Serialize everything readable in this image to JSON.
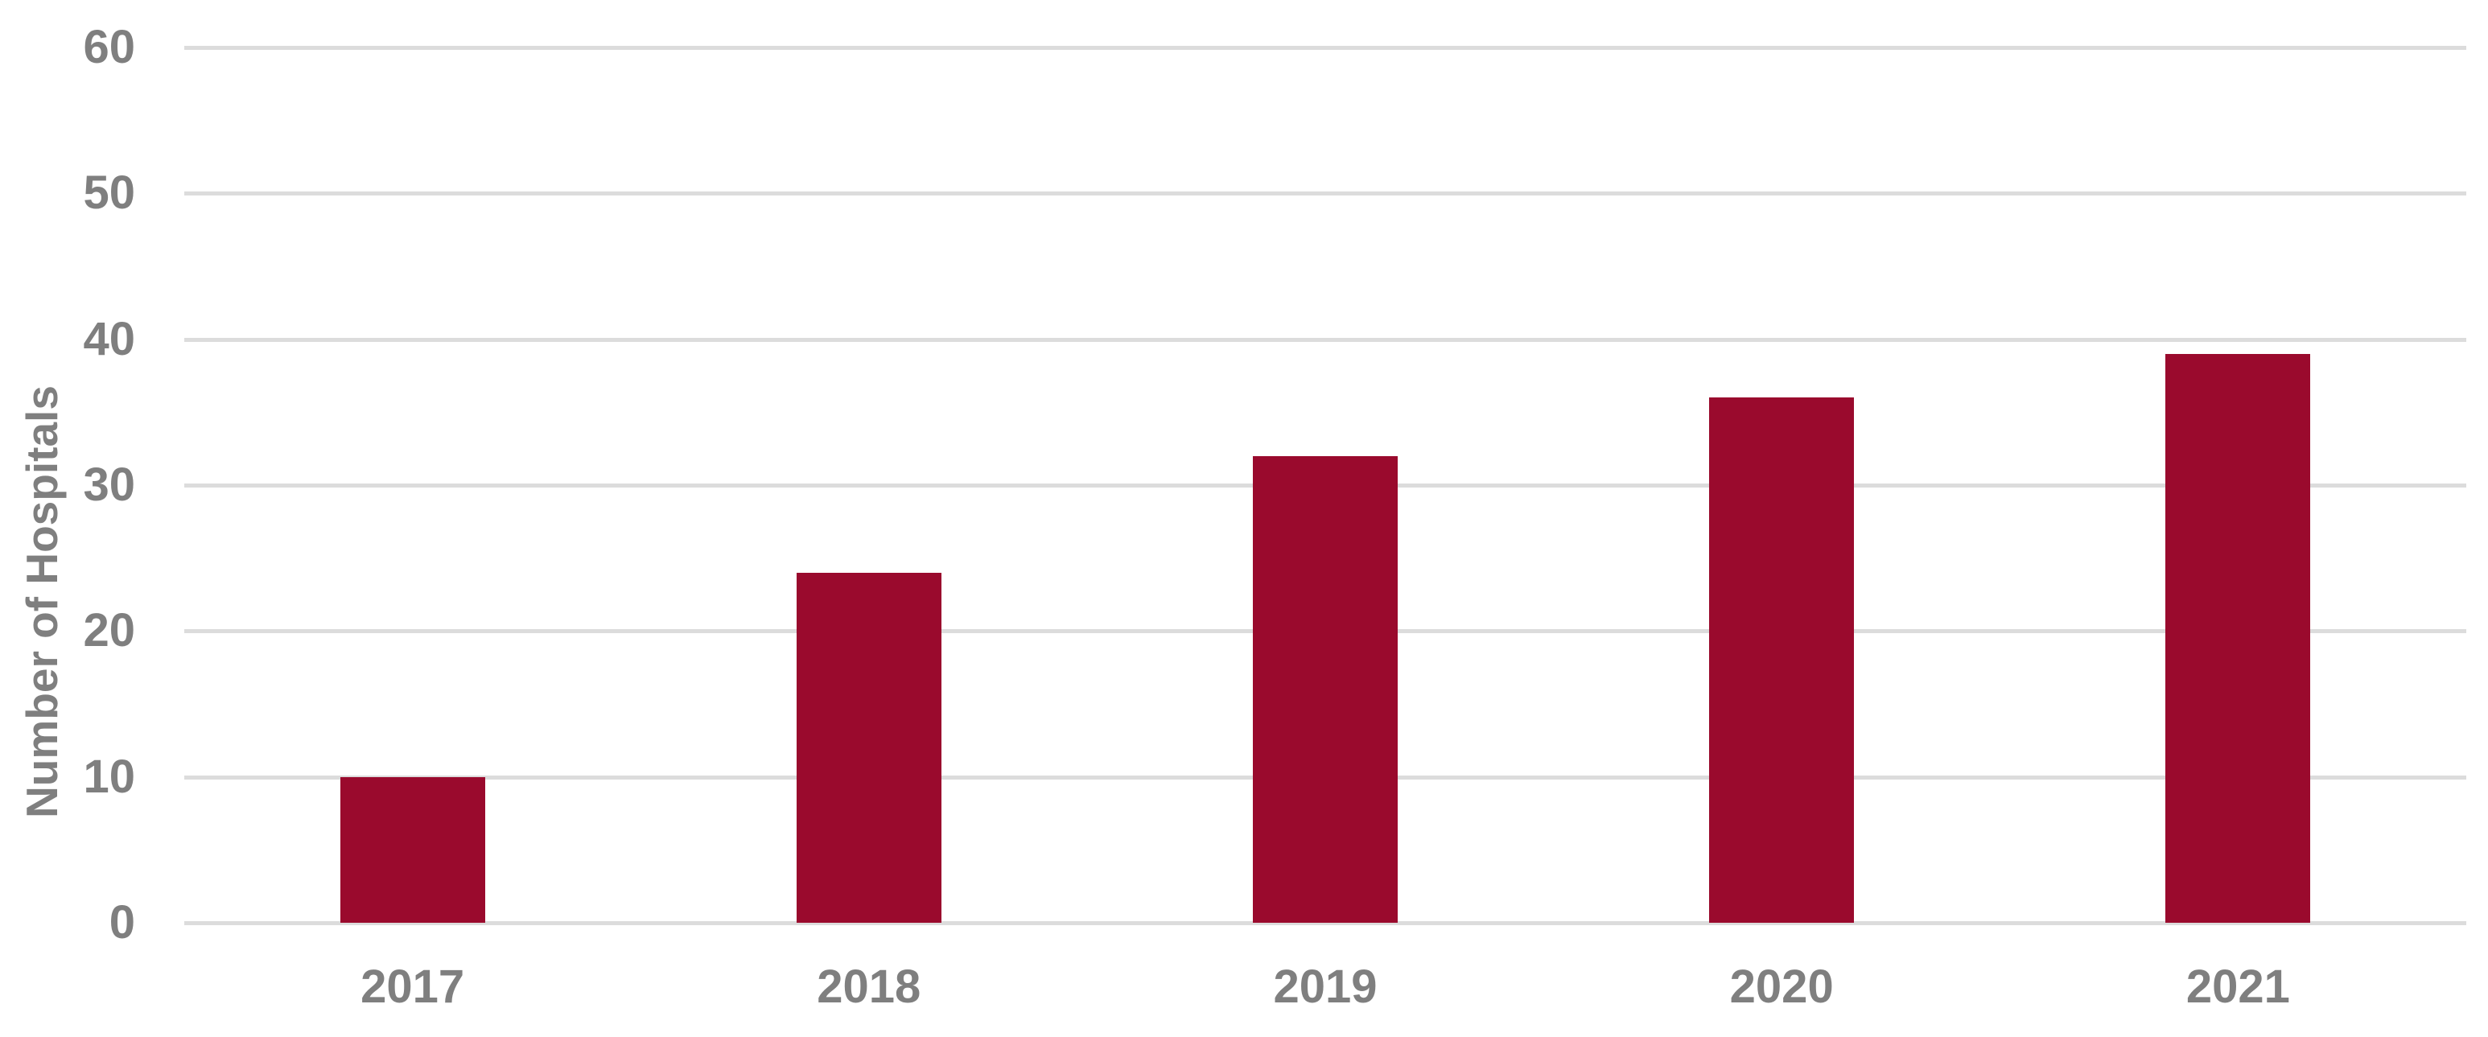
{
  "chart_data": {
    "type": "bar",
    "title": "",
    "categories": [
      "2017",
      "2018",
      "2019",
      "2020",
      "2021"
    ],
    "values": [
      10,
      24,
      32,
      36,
      39
    ],
    "xlabel": "",
    "ylabel": "Number of Hospitals",
    "ylim": [
      0,
      60
    ],
    "yticks": [
      0,
      10,
      20,
      30,
      40,
      50,
      60
    ],
    "grid": "horizontal gridlines on, all light gray",
    "legend": "none",
    "colors": {
      "bar_fill": "#9A0A2D",
      "gridline": "#DCDCDC",
      "axis_label_text": "#7F7F7F",
      "background": "#FFFFFF"
    }
  }
}
